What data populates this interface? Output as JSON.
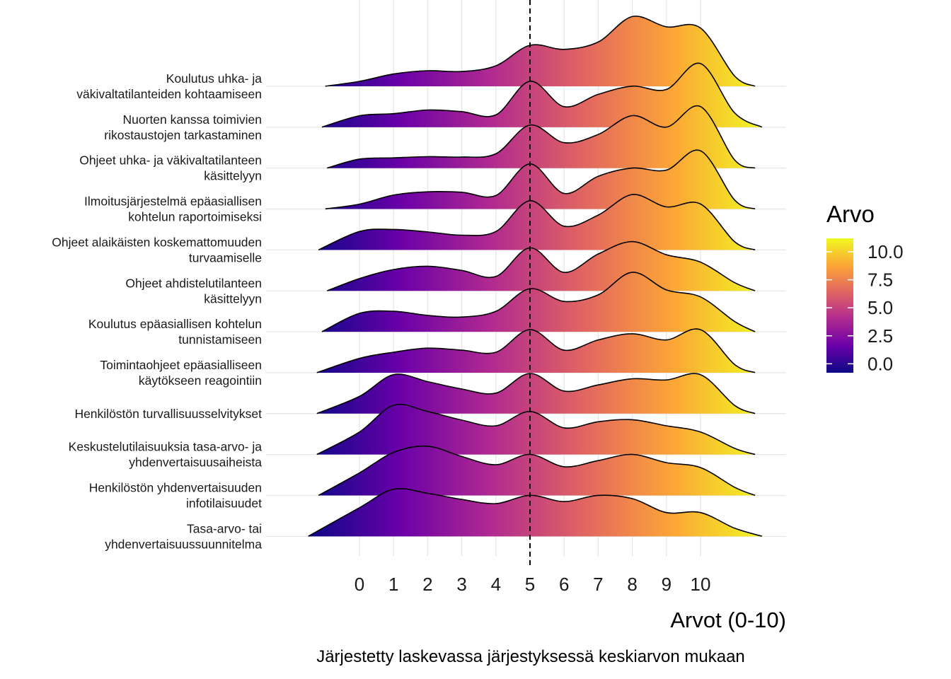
{
  "chart_data": {
    "type": "ridgeline",
    "xlabel": "Arvot (0-10)",
    "caption": "Järjestetty laskevassa järjestyksessä keskiarvon mukaan",
    "x_ticks": [
      0,
      1,
      2,
      3,
      4,
      5,
      6,
      7,
      8,
      9,
      10
    ],
    "reference_line": 5,
    "legend": {
      "title": "Arvo",
      "ticks": [
        "10.0",
        "7.5",
        "5.0",
        "2.5",
        "0.0"
      ],
      "position": "right",
      "colors": [
        "#0d0887",
        "#6a00a8",
        "#b12a90",
        "#e16462",
        "#fca636",
        "#f0f921"
      ]
    },
    "series": [
      {
        "label": "Koulutus uhka- ja\nväkivaltatilanteiden kohtaamiseen",
        "density": [
          [
            -1,
            0.002
          ],
          [
            0,
            0.12
          ],
          [
            1,
            0.3
          ],
          [
            2,
            0.38
          ],
          [
            3,
            0.36
          ],
          [
            4,
            0.5
          ],
          [
            5,
            1.0
          ],
          [
            6,
            0.9
          ],
          [
            7,
            1.08
          ],
          [
            8,
            1.7
          ],
          [
            9,
            1.45
          ],
          [
            10,
            1.42
          ],
          [
            11,
            0.25
          ],
          [
            11.6,
            0.002
          ]
        ]
      },
      {
        "label": "Nuorten kanssa toimivien\nrikostaustojen tarkastaminen",
        "density": [
          [
            -1.1,
            0.002
          ],
          [
            0,
            0.28
          ],
          [
            1,
            0.33
          ],
          [
            2,
            0.42
          ],
          [
            3,
            0.38
          ],
          [
            4,
            0.3
          ],
          [
            5,
            1.12
          ],
          [
            6,
            0.5
          ],
          [
            7,
            0.8
          ],
          [
            8,
            1.0
          ],
          [
            9,
            0.92
          ],
          [
            10,
            1.55
          ],
          [
            11,
            0.35
          ],
          [
            11.8,
            0.002
          ]
        ]
      },
      {
        "label": "Ohjeet uhka- ja väkivaltatilanteen\nkäsittelyyn",
        "density": [
          [
            -0.95,
            0.002
          ],
          [
            0,
            0.22
          ],
          [
            1,
            0.25
          ],
          [
            2,
            0.28
          ],
          [
            3,
            0.27
          ],
          [
            4,
            0.35
          ],
          [
            5,
            1.05
          ],
          [
            6,
            0.62
          ],
          [
            7,
            0.82
          ],
          [
            8,
            1.28
          ],
          [
            9,
            1.0
          ],
          [
            10,
            1.5
          ],
          [
            11,
            0.2
          ],
          [
            11.6,
            0.002
          ]
        ]
      },
      {
        "label": "Ilmoitusjärjestelmä epäasiallisen\nkohtelun raportoimiseksi",
        "density": [
          [
            -1.0,
            0.002
          ],
          [
            0,
            0.12
          ],
          [
            1,
            0.34
          ],
          [
            2,
            0.42
          ],
          [
            3,
            0.41
          ],
          [
            4,
            0.33
          ],
          [
            5,
            1.1
          ],
          [
            6,
            0.38
          ],
          [
            7,
            0.8
          ],
          [
            8,
            1.0
          ],
          [
            9,
            0.95
          ],
          [
            10,
            1.42
          ],
          [
            11,
            0.22
          ],
          [
            11.6,
            0.002
          ]
        ]
      },
      {
        "label": "Ohjeet alaikäisten koskemattomuuden\nturvaamiselle",
        "density": [
          [
            -1.2,
            0.002
          ],
          [
            0,
            0.45
          ],
          [
            1,
            0.5
          ],
          [
            2,
            0.44
          ],
          [
            3,
            0.36
          ],
          [
            4,
            0.45
          ],
          [
            5,
            1.2
          ],
          [
            6,
            0.58
          ],
          [
            7,
            0.85
          ],
          [
            8,
            1.35
          ],
          [
            9,
            1.05
          ],
          [
            10,
            1.12
          ],
          [
            11,
            0.2
          ],
          [
            11.6,
            0.002
          ]
        ]
      },
      {
        "label": "Ohjeet ahdistelutilanteen\nkäsittelyyn",
        "density": [
          [
            -0.95,
            0.002
          ],
          [
            0,
            0.3
          ],
          [
            1,
            0.52
          ],
          [
            2,
            0.6
          ],
          [
            3,
            0.5
          ],
          [
            4,
            0.35
          ],
          [
            5,
            1.05
          ],
          [
            6,
            0.45
          ],
          [
            7,
            0.9
          ],
          [
            8,
            1.2
          ],
          [
            9,
            0.88
          ],
          [
            10,
            0.7
          ],
          [
            11,
            0.2
          ],
          [
            11.6,
            0.002
          ]
        ]
      },
      {
        "label": "Koulutus epäasiallisen kohtelun\ntunnistamiseen",
        "density": [
          [
            -1.1,
            0.002
          ],
          [
            0,
            0.45
          ],
          [
            1,
            0.5
          ],
          [
            2,
            0.4
          ],
          [
            3,
            0.36
          ],
          [
            4,
            0.5
          ],
          [
            5,
            1.05
          ],
          [
            6,
            0.74
          ],
          [
            7,
            0.9
          ],
          [
            8,
            1.45
          ],
          [
            9,
            1.02
          ],
          [
            10,
            0.85
          ],
          [
            11,
            0.25
          ],
          [
            11.6,
            0.002
          ]
        ]
      },
      {
        "label": "Toimintaohjeet epäasialliseen\nkäytökseen reagointiin",
        "density": [
          [
            -1.25,
            0.002
          ],
          [
            0,
            0.35
          ],
          [
            1,
            0.5
          ],
          [
            2,
            0.6
          ],
          [
            3,
            0.55
          ],
          [
            4,
            0.5
          ],
          [
            5,
            1.05
          ],
          [
            6,
            0.55
          ],
          [
            7,
            0.8
          ],
          [
            8,
            0.95
          ],
          [
            9,
            0.8
          ],
          [
            10,
            1.05
          ],
          [
            11,
            0.2
          ],
          [
            11.6,
            0.002
          ]
        ]
      },
      {
        "label": "Henkilöstön turvallisuusselvitykset",
        "density": [
          [
            -1.25,
            0.002
          ],
          [
            0,
            0.42
          ],
          [
            1,
            0.95
          ],
          [
            2,
            0.78
          ],
          [
            3,
            0.6
          ],
          [
            4,
            0.5
          ],
          [
            5,
            0.98
          ],
          [
            6,
            0.55
          ],
          [
            7,
            0.7
          ],
          [
            8,
            0.85
          ],
          [
            9,
            0.82
          ],
          [
            10,
            0.95
          ],
          [
            11,
            0.2
          ],
          [
            11.6,
            0.002
          ]
        ]
      },
      {
        "label": "Keskustelutilaisuuksia tasa-arvo- ja\nyhdenvertaisuusaiheista",
        "density": [
          [
            -1.25,
            0.002
          ],
          [
            0,
            0.55
          ],
          [
            1,
            1.2
          ],
          [
            2,
            1.05
          ],
          [
            3,
            0.84
          ],
          [
            4,
            0.7
          ],
          [
            5,
            1.05
          ],
          [
            6,
            0.65
          ],
          [
            7,
            0.8
          ],
          [
            8,
            0.85
          ],
          [
            9,
            0.7
          ],
          [
            10,
            0.55
          ],
          [
            11,
            0.15
          ],
          [
            11.6,
            0.002
          ]
        ]
      },
      {
        "label": "Henkilöstön yhdenvertaisuuden\ninfotilaisuudet",
        "density": [
          [
            -1.2,
            0.002
          ],
          [
            0,
            0.55
          ],
          [
            1,
            1.05
          ],
          [
            2,
            1.2
          ],
          [
            3,
            0.95
          ],
          [
            4,
            0.75
          ],
          [
            5,
            1.0
          ],
          [
            6,
            0.7
          ],
          [
            7,
            0.85
          ],
          [
            8,
            1.0
          ],
          [
            9,
            0.8
          ],
          [
            10,
            0.68
          ],
          [
            11,
            0.2
          ],
          [
            11.6,
            0.002
          ]
        ]
      },
      {
        "label": "Tasa-arvo- tai\nyhdenvertaisuussuunnitelma",
        "density": [
          [
            -1.5,
            0.002
          ],
          [
            0,
            0.7
          ],
          [
            1,
            1.15
          ],
          [
            2,
            1.05
          ],
          [
            3,
            0.9
          ],
          [
            4,
            0.8
          ],
          [
            5,
            1.0
          ],
          [
            6,
            0.85
          ],
          [
            7,
            1.0
          ],
          [
            8,
            0.92
          ],
          [
            9,
            0.58
          ],
          [
            10,
            0.58
          ],
          [
            11,
            0.2
          ],
          [
            11.8,
            0.002
          ]
        ]
      }
    ]
  }
}
